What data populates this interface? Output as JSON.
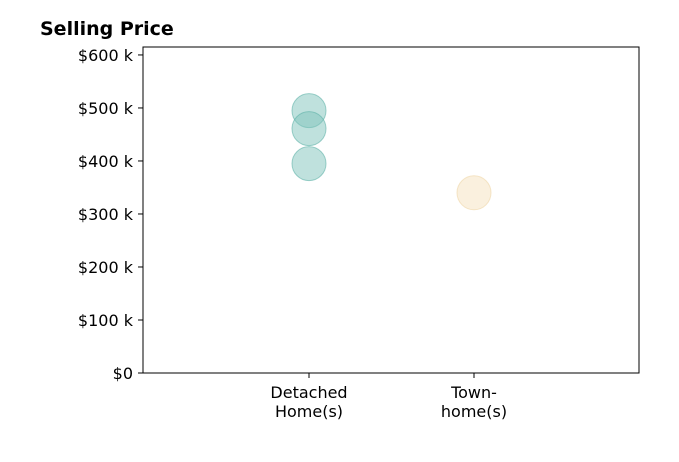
{
  "chart_data": {
    "type": "scatter",
    "title": "Selling Price",
    "xlabel": "",
    "ylabel": "",
    "categories": [
      [
        "Detached",
        "Home(s)"
      ],
      [
        "Town-",
        "home(s)"
      ]
    ],
    "ylim": [
      0,
      615000
    ],
    "yticks": [
      0,
      100000,
      200000,
      300000,
      400000,
      500000,
      600000
    ],
    "ytick_labels": [
      "$0",
      "$100 k",
      "$200 k",
      "$300 k",
      "$400 k",
      "$500 k",
      "$600 k"
    ],
    "grid": false,
    "legend": "none",
    "series": [
      {
        "color": "#7fc4bc",
        "edge_color": "#5fb3a9",
        "points": [
          {
            "category": 0,
            "value": 495000
          },
          {
            "category": 0,
            "value": 461000
          },
          {
            "category": 0,
            "value": 395000
          }
        ]
      },
      {
        "color": "#f5e2be",
        "edge_color": "#efd6a6",
        "points": [
          {
            "category": 1,
            "value": 340000
          }
        ]
      }
    ]
  }
}
